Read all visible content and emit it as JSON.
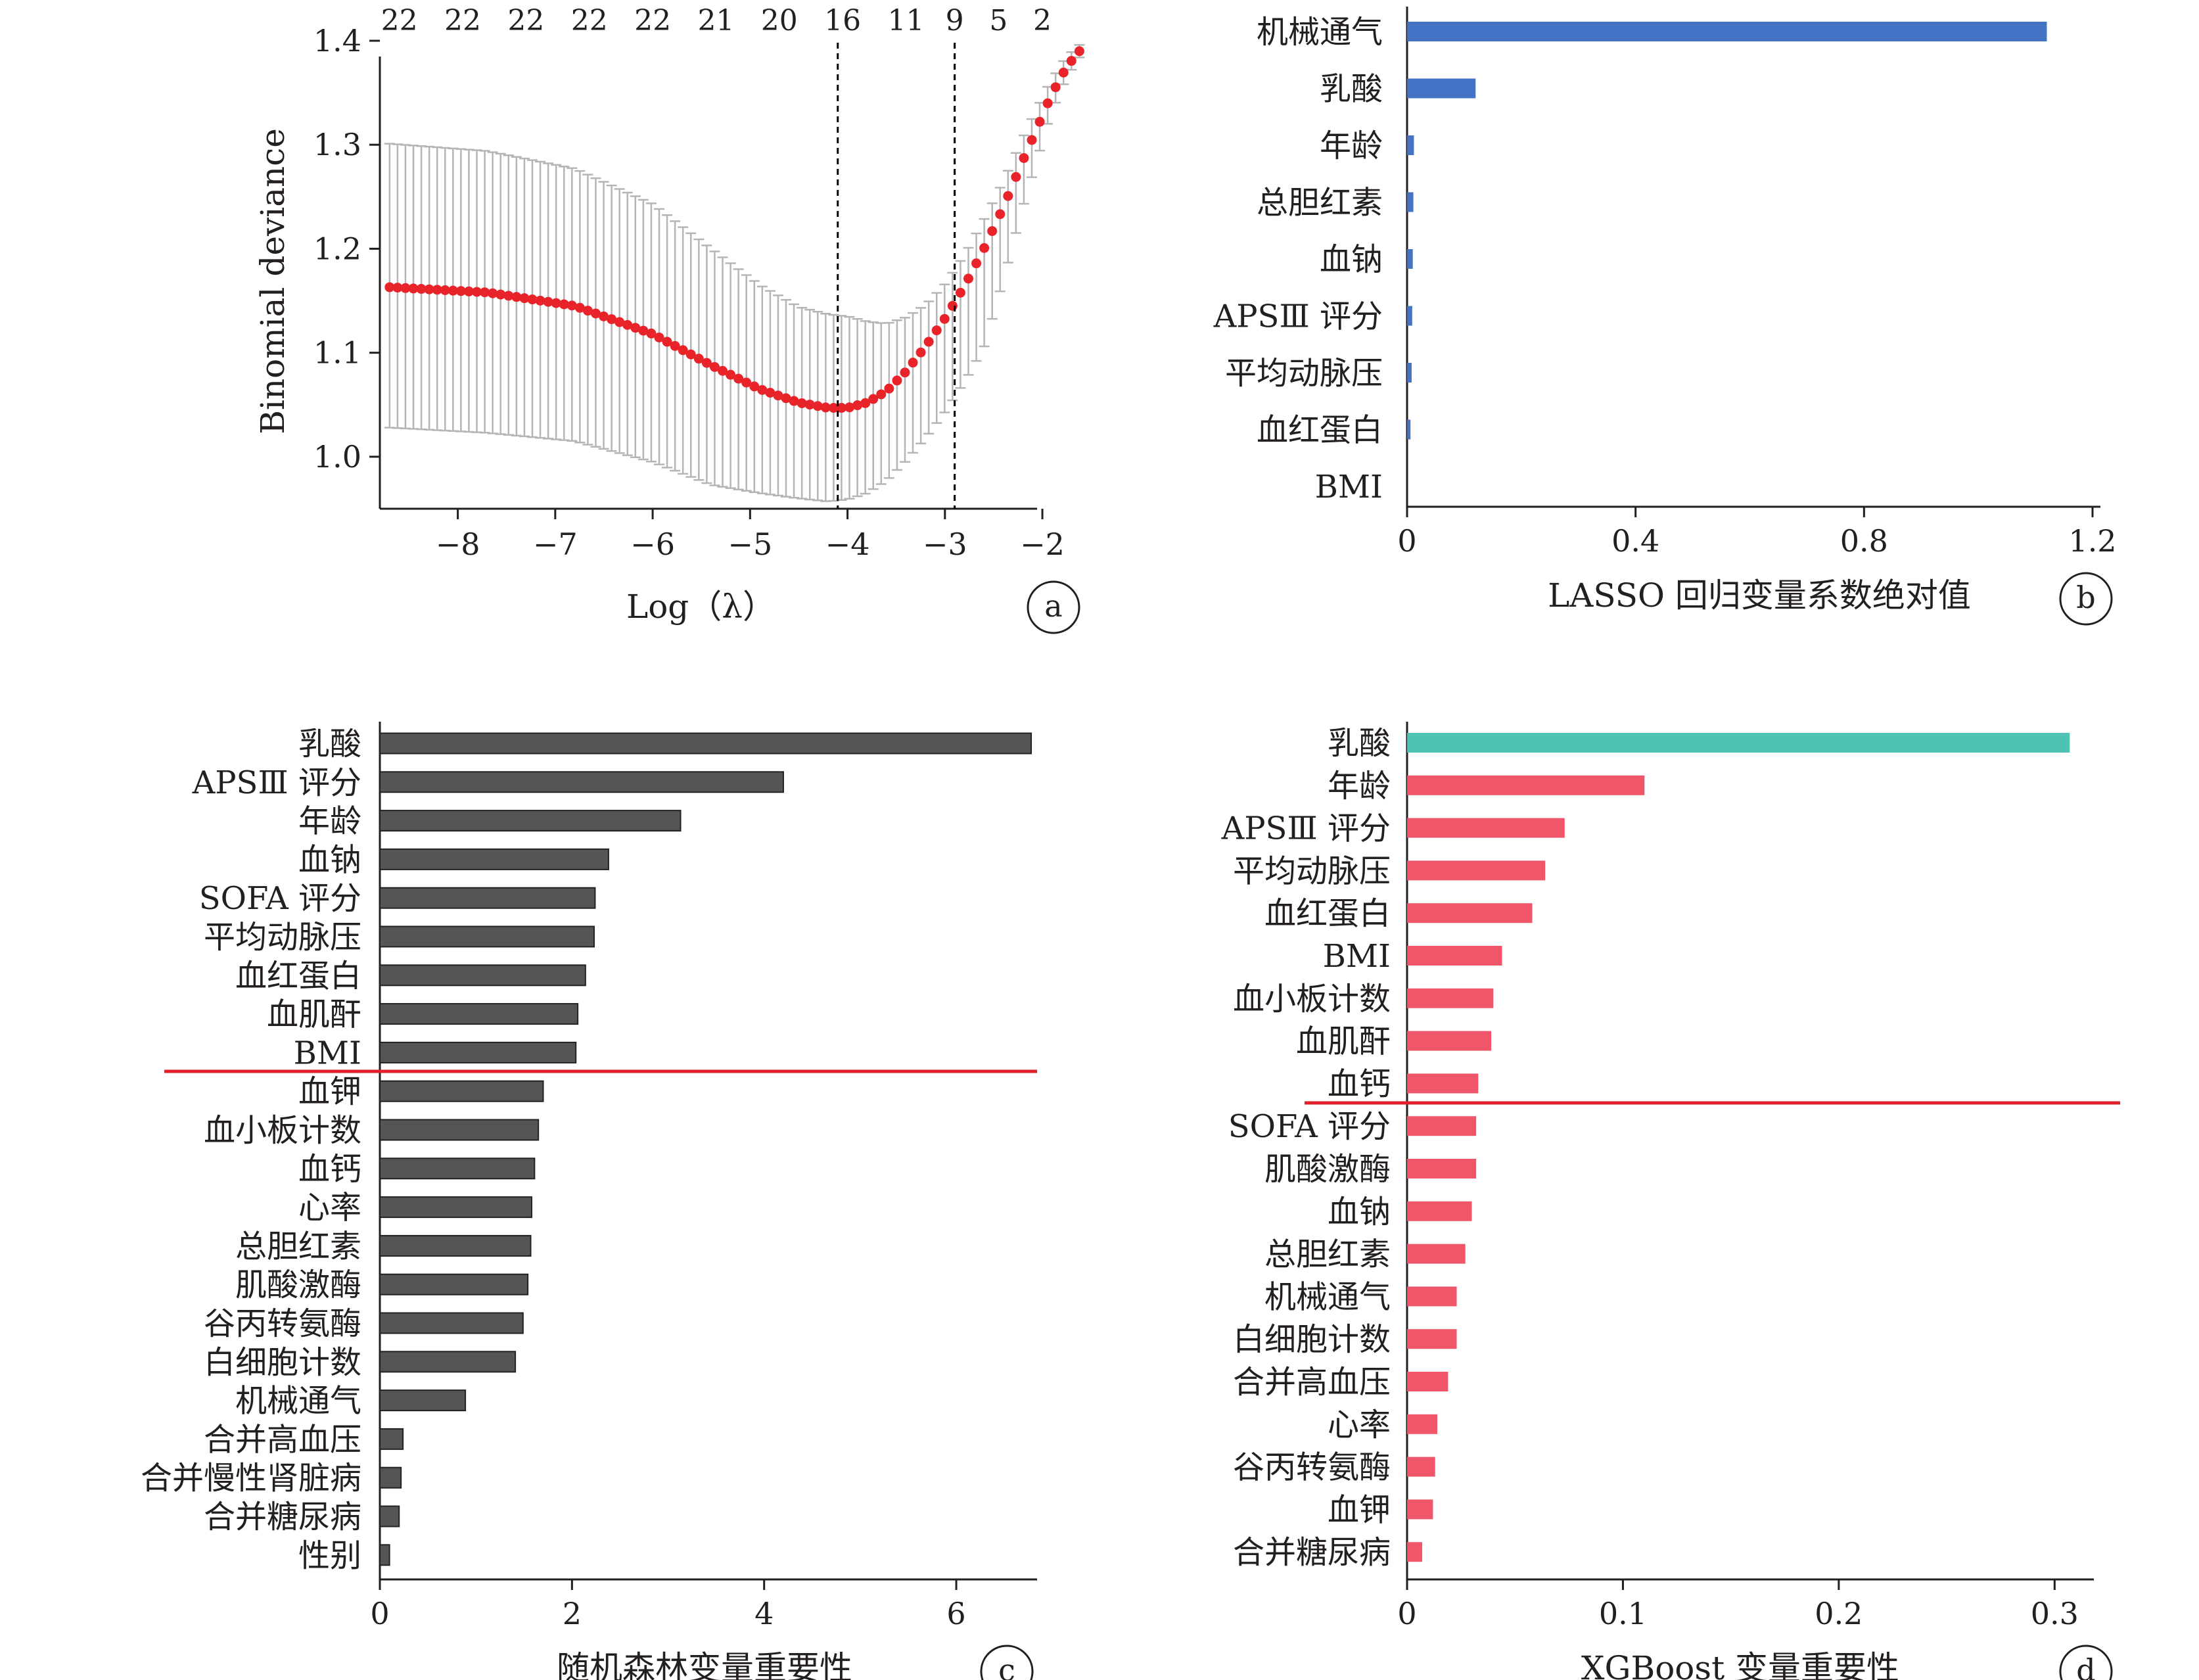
{
  "colors": {
    "axis": "#231f20",
    "lasso_bar": "#4472c4",
    "rf_bar": "#555555",
    "xgb_top_bar": "#4fc3b3",
    "xgb_bar": "#f0566a",
    "cutoff_line": "#e0202a",
    "cv_point": "#e8232a",
    "cv_errorbar": "#b5b5b5"
  },
  "chart_data": [
    {
      "panel": "a",
      "type": "scatter",
      "xlabel": "Log（λ）",
      "ylabel": "Binomial deviance",
      "xlim": [
        -8.8,
        -1.4
      ],
      "ylim": [
        0.95,
        1.4
      ],
      "x_ticks": [
        "−8",
        "−7",
        "−6",
        "−5",
        "−4",
        "−3",
        "−2"
      ],
      "x_tick_values": [
        -8,
        -7,
        -6,
        -5,
        -4,
        -3,
        -2
      ],
      "y_ticks": [
        "1.0",
        "1.1",
        "1.2",
        "1.3",
        "1.4"
      ],
      "y_tick_values": [
        1.0,
        1.1,
        1.2,
        1.3,
        1.4
      ],
      "top_axis_counts": [
        "22",
        "22",
        "22",
        "22",
        "22",
        "21",
        "20",
        "16",
        "11",
        "9",
        "5",
        "2"
      ],
      "top_axis_count_x": [
        -8.6,
        -7.95,
        -7.3,
        -6.65,
        -6.0,
        -5.35,
        -4.7,
        -4.05,
        -3.4,
        -2.9,
        -2.45,
        -2.0
      ],
      "vlines": [
        -4.1,
        -2.9
      ],
      "curve_x": [
        -8.7,
        -7.7,
        -6.8,
        -6.0,
        -5.4,
        -4.9,
        -4.5,
        -4.2,
        -4.0,
        -3.8,
        -3.6,
        -3.4,
        -3.2,
        -3.0,
        -2.8,
        -2.6,
        -2.4,
        -2.2,
        -2.05,
        -1.95,
        -1.85,
        -1.75,
        -1.62
      ],
      "curve_y": [
        1.163,
        1.158,
        1.145,
        1.118,
        1.088,
        1.065,
        1.052,
        1.047,
        1.047,
        1.052,
        1.063,
        1.082,
        1.106,
        1.133,
        1.164,
        1.2,
        1.24,
        1.285,
        1.317,
        1.339,
        1.358,
        1.375,
        1.39
      ],
      "err_lo_offset": [
        0.135,
        0.135,
        0.13,
        0.123,
        0.115,
        0.1,
        0.092,
        0.09,
        0.088,
        0.087,
        0.086,
        0.086,
        0.088,
        0.09,
        0.092,
        0.095,
        0.07,
        0.045,
        0.03,
        0.02,
        0.014,
        0.01,
        0.006
      ],
      "err_hi_offset": [
        0.138,
        0.136,
        0.132,
        0.125,
        0.112,
        0.1,
        0.092,
        0.09,
        0.088,
        0.078,
        0.065,
        0.052,
        0.04,
        0.033,
        0.03,
        0.028,
        0.025,
        0.022,
        0.019,
        0.016,
        0.013,
        0.01,
        0.006
      ],
      "n_points": 88,
      "tag": "a"
    },
    {
      "panel": "b",
      "type": "bar",
      "orientation": "horizontal",
      "xlabel": "LASSO 回归变量系数绝对值",
      "xlim": [
        0,
        1.2
      ],
      "x_ticks": [
        "0",
        "0.4",
        "0.8",
        "1.2"
      ],
      "x_tick_values": [
        0,
        0.4,
        0.8,
        1.2
      ],
      "categories": [
        "机械通气",
        "乳酸",
        "年龄",
        "总胆红素",
        "血钠",
        "APSⅢ 评分",
        "平均动脉压",
        "血红蛋白",
        "BMI"
      ],
      "values": [
        1.12,
        0.12,
        0.012,
        0.011,
        0.01,
        0.009,
        0.008,
        0.006,
        0
      ],
      "tag": "b"
    },
    {
      "panel": "c",
      "type": "bar",
      "orientation": "horizontal",
      "xlabel": "随机森林变量重要性",
      "xlim": [
        0,
        6.8
      ],
      "x_ticks": [
        "0",
        "2",
        "4",
        "6"
      ],
      "x_tick_values": [
        0,
        2,
        4,
        6
      ],
      "categories": [
        "乳酸",
        "APSⅢ 评分",
        "年龄",
        "血钠",
        "SOFA 评分",
        "平均动脉压",
        "血红蛋白",
        "血肌酐",
        "BMI",
        "血钾",
        "血小板计数",
        "血钙",
        "心率",
        "总胆红素",
        "肌酸激酶",
        "谷丙转氨酶",
        "白细胞计数",
        "机械通气",
        "合并高血压",
        "合并慢性肾脏病",
        "合并糖尿病",
        "性别"
      ],
      "values": [
        6.78,
        4.2,
        3.13,
        2.38,
        2.24,
        2.23,
        2.14,
        2.06,
        2.04,
        1.7,
        1.65,
        1.61,
        1.58,
        1.57,
        1.54,
        1.49,
        1.41,
        0.89,
        0.24,
        0.22,
        0.2,
        0.1
      ],
      "cutoff_after": 9,
      "tag": "c"
    },
    {
      "panel": "d",
      "type": "bar",
      "orientation": "horizontal",
      "xlabel": "XGBoost 变量重要性",
      "xlim": [
        0,
        0.32
      ],
      "x_ticks": [
        "0",
        "0.1",
        "0.2",
        "0.3"
      ],
      "x_tick_values": [
        0,
        0.1,
        0.2,
        0.3
      ],
      "categories": [
        "乳酸",
        "年龄",
        "APSⅢ 评分",
        "平均动脉压",
        "血红蛋白",
        "BMI",
        "血小板计数",
        "血肌酐",
        "血钙",
        "SOFA 评分",
        "肌酸激酶",
        "血钠",
        "总胆红素",
        "机械通气",
        "白细胞计数",
        "合并高血压",
        "心率",
        "谷丙转氨酶",
        "血钾",
        "合并糖尿病"
      ],
      "values": [
        0.307,
        0.11,
        0.073,
        0.064,
        0.058,
        0.044,
        0.04,
        0.039,
        0.033,
        0.032,
        0.032,
        0.03,
        0.027,
        0.023,
        0.023,
        0.019,
        0.014,
        0.013,
        0.012,
        0.007
      ],
      "cutoff_after": 9,
      "tag": "d"
    }
  ]
}
